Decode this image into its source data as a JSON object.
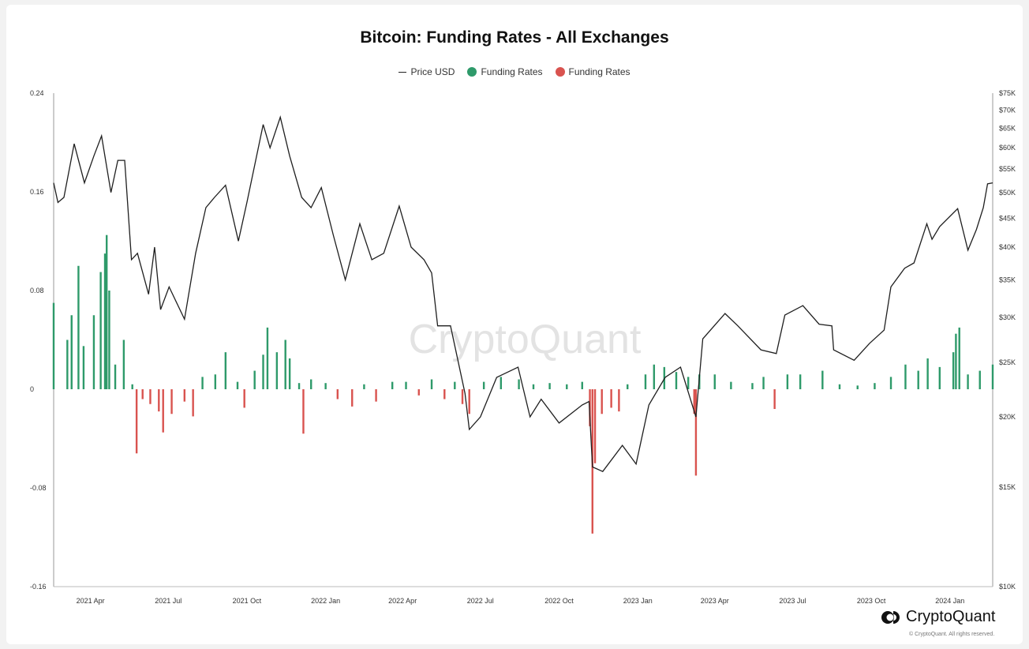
{
  "chart_data": {
    "type": "bar",
    "title": "Bitcoin: Funding Rates - All Exchanges",
    "legend": [
      {
        "label": "Price USD",
        "color": "#222222",
        "marker": "line"
      },
      {
        "label": "Funding Rates",
        "color": "#2e9a6a",
        "marker": "dot"
      },
      {
        "label": "Funding Rates",
        "color": "#d9534f",
        "marker": "dot"
      }
    ],
    "legend_placement": "top-center",
    "watermark": "CryptoQuant",
    "x_ticks": [
      "2021 Apr",
      "2021 Jul",
      "2021 Oct",
      "2022 Jan",
      "2022 Apr",
      "2022 Jul",
      "2022 Oct",
      "2023 Jan",
      "2023 Apr",
      "2023 Jul",
      "2023 Oct",
      "2024 Jan"
    ],
    "left_axis": {
      "ticks": [
        "0.24",
        "0.16",
        "0.08",
        "0",
        "-0.08",
        "-0.16"
      ],
      "ylim": [
        -0.16,
        0.24
      ]
    },
    "right_axis": {
      "ticks": [
        "$75K",
        "$70K",
        "$65K",
        "$60K",
        "$55K",
        "$50K",
        "$45K",
        "$40K",
        "$35K",
        "$30K",
        "$25K",
        "$20K",
        "$15K",
        "$10K"
      ],
      "scale": "log",
      "ylim": [
        10000,
        75000
      ]
    },
    "xlim": [
      "2021-02-17",
      "2024-02-20"
    ],
    "price_usd": [
      [
        "2021-02-17",
        52000
      ],
      [
        "2021-02-22",
        48000
      ],
      [
        "2021-03-01",
        49000
      ],
      [
        "2021-03-13",
        61000
      ],
      [
        "2021-03-25",
        52000
      ],
      [
        "2021-04-05",
        58000
      ],
      [
        "2021-04-14",
        63000
      ],
      [
        "2021-04-25",
        50000
      ],
      [
        "2021-05-03",
        57000
      ],
      [
        "2021-05-11",
        57000
      ],
      [
        "2021-05-19",
        38000
      ],
      [
        "2021-05-26",
        39000
      ],
      [
        "2021-06-08",
        33000
      ],
      [
        "2021-06-15",
        40000
      ],
      [
        "2021-06-22",
        31000
      ],
      [
        "2021-07-02",
        34000
      ],
      [
        "2021-07-20",
        29800
      ],
      [
        "2021-08-02",
        39000
      ],
      [
        "2021-08-14",
        47000
      ],
      [
        "2021-08-24",
        49000
      ],
      [
        "2021-09-06",
        51500
      ],
      [
        "2021-09-21",
        41000
      ],
      [
        "2021-10-01",
        48000
      ],
      [
        "2021-10-20",
        66000
      ],
      [
        "2021-10-28",
        60000
      ],
      [
        "2021-11-09",
        68000
      ],
      [
        "2021-11-20",
        58000
      ],
      [
        "2021-12-04",
        49000
      ],
      [
        "2021-12-15",
        47000
      ],
      [
        "2021-12-27",
        51000
      ],
      [
        "2022-01-10",
        42000
      ],
      [
        "2022-01-24",
        35000
      ],
      [
        "2022-02-10",
        44000
      ],
      [
        "2022-02-24",
        38000
      ],
      [
        "2022-03-10",
        39000
      ],
      [
        "2022-03-28",
        47300
      ],
      [
        "2022-04-11",
        40000
      ],
      [
        "2022-04-26",
        38000
      ],
      [
        "2022-05-05",
        36000
      ],
      [
        "2022-05-12",
        29000
      ],
      [
        "2022-05-27",
        29000
      ],
      [
        "2022-06-13",
        22000
      ],
      [
        "2022-06-18",
        19000
      ],
      [
        "2022-07-01",
        20000
      ],
      [
        "2022-07-20",
        23500
      ],
      [
        "2022-08-14",
        24500
      ],
      [
        "2022-08-28",
        20000
      ],
      [
        "2022-09-10",
        21500
      ],
      [
        "2022-10-01",
        19500
      ],
      [
        "2022-10-28",
        21000
      ],
      [
        "2022-11-05",
        21300
      ],
      [
        "2022-11-09",
        16300
      ],
      [
        "2022-11-21",
        16000
      ],
      [
        "2022-12-14",
        17800
      ],
      [
        "2022-12-30",
        16500
      ],
      [
        "2023-01-14",
        21000
      ],
      [
        "2023-02-02",
        23500
      ],
      [
        "2023-02-20",
        24500
      ],
      [
        "2023-03-10",
        20000
      ],
      [
        "2023-03-18",
        27500
      ],
      [
        "2023-04-13",
        30500
      ],
      [
        "2023-04-28",
        29000
      ],
      [
        "2023-05-25",
        26300
      ],
      [
        "2023-06-12",
        25900
      ],
      [
        "2023-06-22",
        30300
      ],
      [
        "2023-07-13",
        31500
      ],
      [
        "2023-08-01",
        29200
      ],
      [
        "2023-08-16",
        29000
      ],
      [
        "2023-08-18",
        26300
      ],
      [
        "2023-09-11",
        25200
      ],
      [
        "2023-09-29",
        27000
      ],
      [
        "2023-10-16",
        28500
      ],
      [
        "2023-10-24",
        34000
      ],
      [
        "2023-11-09",
        36700
      ],
      [
        "2023-11-20",
        37500
      ],
      [
        "2023-12-05",
        44000
      ],
      [
        "2023-12-11",
        41300
      ],
      [
        "2023-12-20",
        43500
      ],
      [
        "2024-01-10",
        46800
      ],
      [
        "2024-01-22",
        39500
      ],
      [
        "2024-02-01",
        43000
      ],
      [
        "2024-02-09",
        47000
      ],
      [
        "2024-02-14",
        51800
      ],
      [
        "2024-02-20",
        52000
      ]
    ],
    "funding_rates": [
      [
        "2021-02-17",
        0.07
      ],
      [
        "2021-03-05",
        0.04
      ],
      [
        "2021-03-10",
        0.06
      ],
      [
        "2021-03-18",
        0.1
      ],
      [
        "2021-03-24",
        0.035
      ],
      [
        "2021-04-05",
        0.06
      ],
      [
        "2021-04-13",
        0.095
      ],
      [
        "2021-04-18",
        0.11
      ],
      [
        "2021-04-20",
        0.125
      ],
      [
        "2021-04-23",
        0.08
      ],
      [
        "2021-04-30",
        0.02
      ],
      [
        "2021-05-10",
        0.04
      ],
      [
        "2021-05-20",
        0.004
      ],
      [
        "2021-05-25",
        -0.052
      ],
      [
        "2021-06-01",
        -0.008
      ],
      [
        "2021-06-10",
        -0.012
      ],
      [
        "2021-06-20",
        -0.018
      ],
      [
        "2021-06-25",
        -0.035
      ],
      [
        "2021-07-05",
        -0.02
      ],
      [
        "2021-07-20",
        -0.01
      ],
      [
        "2021-07-30",
        -0.022
      ],
      [
        "2021-08-10",
        0.01
      ],
      [
        "2021-08-25",
        0.012
      ],
      [
        "2021-09-06",
        0.03
      ],
      [
        "2021-09-20",
        0.006
      ],
      [
        "2021-09-28",
        -0.015
      ],
      [
        "2021-10-10",
        0.015
      ],
      [
        "2021-10-20",
        0.028
      ],
      [
        "2021-10-25",
        0.05
      ],
      [
        "2021-11-05",
        0.03
      ],
      [
        "2021-11-15",
        0.04
      ],
      [
        "2021-11-20",
        0.025
      ],
      [
        "2021-12-01",
        0.005
      ],
      [
        "2021-12-06",
        -0.036
      ],
      [
        "2021-12-15",
        0.008
      ],
      [
        "2022-01-01",
        0.005
      ],
      [
        "2022-01-15",
        -0.008
      ],
      [
        "2022-02-01",
        -0.014
      ],
      [
        "2022-02-15",
        0.004
      ],
      [
        "2022-03-01",
        -0.01
      ],
      [
        "2022-03-20",
        0.006
      ],
      [
        "2022-04-05",
        0.006
      ],
      [
        "2022-04-20",
        -0.005
      ],
      [
        "2022-05-05",
        0.008
      ],
      [
        "2022-05-20",
        -0.008
      ],
      [
        "2022-06-01",
        0.006
      ],
      [
        "2022-06-10",
        -0.012
      ],
      [
        "2022-06-18",
        -0.02
      ],
      [
        "2022-07-05",
        0.006
      ],
      [
        "2022-07-25",
        0.01
      ],
      [
        "2022-08-15",
        0.008
      ],
      [
        "2022-09-01",
        0.004
      ],
      [
        "2022-09-20",
        0.005
      ],
      [
        "2022-10-10",
        0.004
      ],
      [
        "2022-10-28",
        0.006
      ],
      [
        "2022-11-06",
        -0.03
      ],
      [
        "2022-11-09",
        -0.117
      ],
      [
        "2022-11-12",
        -0.06
      ],
      [
        "2022-11-20",
        -0.02
      ],
      [
        "2022-12-01",
        -0.015
      ],
      [
        "2022-12-10",
        -0.018
      ],
      [
        "2022-12-20",
        0.004
      ],
      [
        "2023-01-10",
        0.012
      ],
      [
        "2023-01-20",
        0.02
      ],
      [
        "2023-02-01",
        0.018
      ],
      [
        "2023-02-15",
        0.014
      ],
      [
        "2023-03-01",
        0.01
      ],
      [
        "2023-03-08",
        -0.02
      ],
      [
        "2023-03-10",
        -0.07
      ],
      [
        "2023-03-14",
        0.012
      ],
      [
        "2023-04-01",
        0.012
      ],
      [
        "2023-04-20",
        0.006
      ],
      [
        "2023-05-15",
        0.005
      ],
      [
        "2023-05-28",
        0.01
      ],
      [
        "2023-06-10",
        -0.016
      ],
      [
        "2023-06-25",
        0.012
      ],
      [
        "2023-07-10",
        0.012
      ],
      [
        "2023-08-05",
        0.015
      ],
      [
        "2023-08-25",
        0.004
      ],
      [
        "2023-09-15",
        0.003
      ],
      [
        "2023-10-05",
        0.005
      ],
      [
        "2023-10-24",
        0.01
      ],
      [
        "2023-11-10",
        0.02
      ],
      [
        "2023-11-25",
        0.015
      ],
      [
        "2023-12-06",
        0.025
      ],
      [
        "2023-12-20",
        0.018
      ],
      [
        "2024-01-05",
        0.03
      ],
      [
        "2024-01-08",
        0.045
      ],
      [
        "2024-01-12",
        0.05
      ],
      [
        "2024-01-22",
        0.012
      ],
      [
        "2024-02-05",
        0.015
      ],
      [
        "2024-02-20",
        0.02
      ]
    ]
  },
  "brand": {
    "name": "CryptoQuant",
    "copyright": "© CryptoQuant. All rights reserved."
  }
}
